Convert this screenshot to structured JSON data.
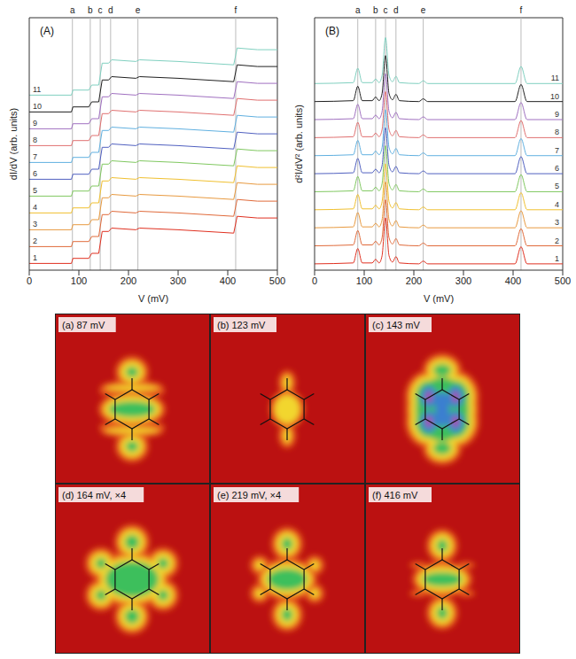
{
  "chart_data": [
    {
      "type": "line",
      "panel": "(A)",
      "y_label": "dI/dV (arb. units)",
      "x_label": "V (mV)",
      "xlim": [
        0,
        500
      ],
      "xticks": [
        0,
        100,
        200,
        300,
        400,
        500
      ],
      "ylim": [
        0,
        15
      ],
      "yticks": [],
      "tick_labels": "x",
      "grid": false,
      "markers": [
        {
          "x": 87,
          "label": "a"
        },
        {
          "x": 123,
          "label": "b"
        },
        {
          "x": 143,
          "label": "c"
        },
        {
          "x": 164,
          "label": "d"
        },
        {
          "x": 219,
          "label": "e"
        },
        {
          "x": 416,
          "label": "f"
        }
      ],
      "x": [
        0,
        85,
        88,
        120,
        126,
        140,
        147,
        160,
        166,
        215,
        222,
        300,
        412,
        419,
        460,
        500
      ],
      "series": [
        {
          "name": "1",
          "color": "#e03020",
          "values": [
            0.4,
            0.4,
            0.7,
            0.7,
            1.0,
            1.0,
            2.3,
            2.3,
            2.5,
            2.4,
            2.5,
            2.4,
            2.2,
            3.2,
            3.1,
            3.1
          ]
        },
        {
          "name": "2",
          "color": "#e06a3a",
          "values": [
            1.4,
            1.4,
            1.7,
            1.7,
            2.0,
            2.0,
            3.3,
            3.3,
            3.5,
            3.4,
            3.5,
            3.4,
            3.2,
            4.2,
            4.1,
            4.1
          ]
        },
        {
          "name": "3",
          "color": "#e89a40",
          "values": [
            2.4,
            2.4,
            2.7,
            2.7,
            3.0,
            3.0,
            4.3,
            4.3,
            4.5,
            4.4,
            4.5,
            4.4,
            4.2,
            5.2,
            5.1,
            5.1
          ]
        },
        {
          "name": "4",
          "color": "#f0c030",
          "values": [
            3.4,
            3.4,
            3.7,
            3.7,
            4.0,
            4.0,
            5.3,
            5.3,
            5.5,
            5.4,
            5.5,
            5.4,
            5.2,
            6.2,
            6.1,
            6.1
          ]
        },
        {
          "name": "5",
          "color": "#80c860",
          "values": [
            4.4,
            4.4,
            4.7,
            4.7,
            5.0,
            5.0,
            6.3,
            6.3,
            6.5,
            6.4,
            6.5,
            6.4,
            6.2,
            7.2,
            7.1,
            7.1
          ]
        },
        {
          "name": "6",
          "color": "#5060c0",
          "values": [
            5.4,
            5.4,
            5.7,
            5.7,
            6.0,
            6.0,
            7.3,
            7.3,
            7.5,
            7.4,
            7.5,
            7.4,
            7.2,
            8.2,
            8.1,
            8.1
          ]
        },
        {
          "name": "7",
          "color": "#60b0e0",
          "values": [
            6.4,
            6.4,
            6.7,
            6.7,
            7.0,
            7.0,
            8.3,
            8.3,
            8.5,
            8.4,
            8.5,
            8.4,
            8.2,
            9.2,
            9.1,
            9.1
          ]
        },
        {
          "name": "8",
          "color": "#e07070",
          "values": [
            7.4,
            7.4,
            7.7,
            7.7,
            8.0,
            8.0,
            9.3,
            9.3,
            9.5,
            9.4,
            9.5,
            9.4,
            9.2,
            10.2,
            10.1,
            10.1
          ]
        },
        {
          "name": "9",
          "color": "#a070c0",
          "values": [
            8.4,
            8.4,
            8.7,
            8.7,
            9.0,
            9.0,
            10.3,
            10.3,
            10.5,
            10.4,
            10.5,
            10.4,
            10.2,
            11.2,
            11.1,
            11.1
          ]
        },
        {
          "name": "10",
          "color": "#202020",
          "values": [
            9.4,
            9.4,
            9.7,
            9.7,
            10.0,
            10.0,
            11.3,
            11.3,
            11.5,
            11.4,
            11.5,
            11.4,
            11.2,
            12.2,
            12.1,
            12.1
          ]
        },
        {
          "name": "11",
          "color": "#80d0c0",
          "values": [
            10.4,
            10.4,
            10.7,
            10.7,
            11.0,
            11.0,
            12.3,
            12.3,
            12.5,
            12.4,
            12.5,
            12.4,
            12.2,
            13.2,
            13.1,
            13.1
          ]
        }
      ]
    },
    {
      "type": "line",
      "panel": "(B)",
      "y_label": "d²I/dV² (arb. units)",
      "x_label": "V (mV)",
      "xlim": [
        0,
        500
      ],
      "xticks": [
        0,
        100,
        200,
        300,
        400,
        500
      ],
      "ylim": [
        0,
        14
      ],
      "yticks": [],
      "tick_labels": "x",
      "grid": false,
      "markers": [
        {
          "x": 87,
          "label": "a"
        },
        {
          "x": 123,
          "label": "b"
        },
        {
          "x": 143,
          "label": "c"
        },
        {
          "x": 164,
          "label": "d"
        },
        {
          "x": 219,
          "label": "e"
        },
        {
          "x": 416,
          "label": "f"
        }
      ],
      "x": [
        0,
        78,
        87,
        96,
        116,
        123,
        130,
        136,
        143,
        150,
        157,
        164,
        171,
        210,
        219,
        228,
        404,
        416,
        428,
        500
      ],
      "series": [
        {
          "name": "1",
          "color": "#e03020",
          "values": [
            0.35,
            0.4,
            1.2,
            0.4,
            0.4,
            0.6,
            0.4,
            0.8,
            2.9,
            0.8,
            0.45,
            0.75,
            0.4,
            0.35,
            0.5,
            0.35,
            0.35,
            1.3,
            0.35,
            0.35
          ]
        },
        {
          "name": "2",
          "color": "#e06a3a",
          "values": [
            1.35,
            1.4,
            2.2,
            1.4,
            1.4,
            1.6,
            1.4,
            1.8,
            3.9,
            1.8,
            1.45,
            1.75,
            1.4,
            1.35,
            1.5,
            1.35,
            1.35,
            2.3,
            1.35,
            1.35
          ]
        },
        {
          "name": "3",
          "color": "#e89a40",
          "values": [
            2.35,
            2.4,
            3.2,
            2.4,
            2.4,
            2.6,
            2.4,
            2.8,
            4.9,
            2.8,
            2.45,
            2.75,
            2.4,
            2.35,
            2.5,
            2.35,
            2.35,
            3.3,
            2.35,
            2.35
          ]
        },
        {
          "name": "4",
          "color": "#f0c030",
          "values": [
            3.35,
            3.4,
            4.2,
            3.4,
            3.4,
            3.6,
            3.4,
            3.8,
            5.9,
            3.8,
            3.45,
            3.75,
            3.4,
            3.35,
            3.5,
            3.35,
            3.35,
            4.3,
            3.35,
            3.35
          ]
        },
        {
          "name": "5",
          "color": "#80c860",
          "values": [
            4.35,
            4.4,
            5.2,
            4.4,
            4.4,
            4.6,
            4.4,
            4.8,
            6.9,
            4.8,
            4.45,
            4.75,
            4.4,
            4.35,
            4.5,
            4.35,
            4.35,
            5.3,
            4.35,
            4.35
          ]
        },
        {
          "name": "6",
          "color": "#5060c0",
          "values": [
            5.35,
            5.4,
            6.2,
            5.4,
            5.4,
            5.6,
            5.4,
            5.8,
            7.9,
            5.8,
            5.45,
            5.75,
            5.4,
            5.35,
            5.5,
            5.35,
            5.35,
            6.3,
            5.35,
            5.35
          ]
        },
        {
          "name": "7",
          "color": "#60b0e0",
          "values": [
            6.35,
            6.4,
            7.2,
            6.4,
            6.4,
            6.6,
            6.4,
            6.8,
            8.9,
            6.8,
            6.45,
            6.75,
            6.4,
            6.35,
            6.5,
            6.35,
            6.35,
            7.3,
            6.35,
            6.35
          ]
        },
        {
          "name": "8",
          "color": "#e07070",
          "values": [
            7.35,
            7.4,
            8.2,
            7.4,
            7.4,
            7.6,
            7.4,
            7.8,
            9.9,
            7.8,
            7.45,
            7.75,
            7.4,
            7.35,
            7.5,
            7.35,
            7.35,
            8.3,
            7.35,
            7.35
          ]
        },
        {
          "name": "9",
          "color": "#a070c0",
          "values": [
            8.35,
            8.4,
            9.2,
            8.4,
            8.4,
            8.6,
            8.4,
            8.8,
            10.9,
            8.8,
            8.45,
            8.75,
            8.4,
            8.35,
            8.5,
            8.35,
            8.35,
            9.3,
            8.35,
            8.35
          ]
        },
        {
          "name": "10",
          "color": "#202020",
          "values": [
            9.35,
            9.4,
            10.2,
            9.4,
            9.4,
            9.6,
            9.4,
            9.8,
            11.9,
            9.8,
            9.45,
            9.75,
            9.4,
            9.35,
            9.5,
            9.35,
            9.35,
            10.3,
            9.35,
            9.35
          ]
        },
        {
          "name": "11",
          "color": "#80d0c0",
          "values": [
            10.35,
            10.4,
            11.2,
            10.4,
            10.4,
            10.6,
            10.4,
            10.8,
            12.9,
            10.8,
            10.45,
            10.75,
            10.4,
            10.35,
            10.5,
            10.35,
            10.35,
            11.3,
            10.35,
            10.35
          ]
        }
      ]
    }
  ],
  "maps": [
    {
      "label": "(a) 87 mV"
    },
    {
      "label": "(b) 123 mV"
    },
    {
      "label": "(c) 143 mV"
    },
    {
      "label": "(d) 164 mV, ×4"
    },
    {
      "label": "(e) 219 mV, ×4"
    },
    {
      "label": "(f) 416 mV"
    }
  ]
}
